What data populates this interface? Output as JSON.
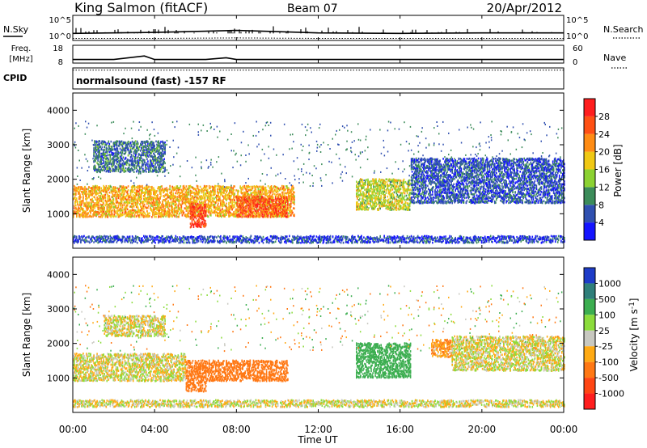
{
  "header": {
    "station": "King Salmon (fitACF)",
    "beam": "Beam 07",
    "date": "20/Apr/2012"
  },
  "noise_panel": {
    "left_label": "N.Sky",
    "right_label": "N.Search",
    "left_ticks": [
      "10^5",
      "10^0"
    ],
    "right_ticks": [
      "10^5",
      "10^0"
    ]
  },
  "freq_panel": {
    "left_label_line1": "Freq.",
    "left_label_line2": "[MHz]",
    "left_ticks": [
      "18",
      "8"
    ],
    "right_label": "Nave",
    "right_ticks": [
      "60",
      "0"
    ]
  },
  "cpid_panel": {
    "label": "CPID",
    "text": "normalsound (fast) -157 RF"
  },
  "x_axis": {
    "label": "Time UT",
    "ticks": [
      "00:00",
      "04:00",
      "08:00",
      "12:00",
      "16:00",
      "20:00",
      "00:00"
    ]
  },
  "y_axis": {
    "label": "Slant Range [km]",
    "ticks": [
      "1000",
      "2000",
      "3000",
      "4000"
    ]
  },
  "power_colorbar": {
    "label": "Power [dB]",
    "ticks": [
      "4",
      "8",
      "12",
      "16",
      "20",
      "24",
      "28"
    ],
    "colors": [
      "#1414ff",
      "#3050b0",
      "#3c8c5a",
      "#8cd232",
      "#f0c814",
      "#ff8c14",
      "#ff5014",
      "#ff1e1e"
    ]
  },
  "velocity_colorbar": {
    "label": "Velocity [m s",
    "label_exp": "-1",
    "label_close": "]",
    "ticks": [
      "1000",
      "500",
      "100",
      "25",
      "-25",
      "-100",
      "-500",
      "-1000"
    ],
    "colors": [
      "#1e3cc8",
      "#2f7f7a",
      "#3cae50",
      "#8cdc3c",
      "#c8c8c0",
      "#ffaa14",
      "#ff7814",
      "#ff4614",
      "#ff1e1e"
    ]
  },
  "chart_data": [
    {
      "type": "line",
      "title": "N.Sky / N.Search",
      "x": [
        "00:00",
        "04:00",
        "08:00",
        "12:00",
        "16:00",
        "20:00",
        "00:00"
      ],
      "series": [
        {
          "name": "N.Sky",
          "values": [
            1.4,
            1.6,
            2.0,
            1.5,
            1.4,
            1.5,
            1.5
          ]
        },
        {
          "name": "N.Search",
          "values": [
            0.4,
            0.4,
            0.5,
            0.4,
            0.4,
            0.4,
            0.4
          ]
        }
      ],
      "ylim": [
        0,
        5
      ]
    },
    {
      "type": "line",
      "title": "Freq. / Nave",
      "x": [
        "00:00",
        "02:00",
        "03:30",
        "04:00",
        "06:30",
        "07:30",
        "08:00",
        "12:00",
        "16:00",
        "20:00",
        "00:00"
      ],
      "series": [
        {
          "name": "Freq.",
          "values": [
            10,
            10,
            12,
            10,
            10,
            11,
            10,
            10,
            10,
            10,
            10
          ]
        },
        {
          "name": "Nave",
          "values": [
            4,
            4,
            4,
            4,
            4,
            4,
            4,
            4,
            4,
            4,
            4
          ]
        }
      ],
      "ylim": [
        8,
        18
      ]
    },
    {
      "type": "heatmap",
      "title": "Power",
      "xlabel": "Time UT",
      "ylabel": "Slant Range [km]",
      "xlim": [
        0,
        24
      ],
      "ylim": [
        0,
        4500
      ],
      "zlabel": "Power [dB]",
      "zlim": [
        0,
        32
      ],
      "regions": [
        {
          "t": [
            0.0,
            10.8
          ],
          "range": [
            900,
            1800
          ],
          "power": 20
        },
        {
          "t": [
            5.7,
            6.5
          ],
          "range": [
            600,
            1300
          ],
          "power": 28
        },
        {
          "t": [
            8.0,
            10.5
          ],
          "range": [
            900,
            1500
          ],
          "power": 27
        },
        {
          "t": [
            1.0,
            4.5
          ],
          "range": [
            2200,
            3100
          ],
          "power": 8
        },
        {
          "t": [
            13.8,
            16.5
          ],
          "range": [
            1100,
            2000
          ],
          "power": 16
        },
        {
          "t": [
            16.5,
            24.0
          ],
          "range": [
            1300,
            2600
          ],
          "power": 6
        },
        {
          "t": [
            0.0,
            24.0
          ],
          "range": [
            150,
            350
          ],
          "power": 5
        }
      ]
    },
    {
      "type": "heatmap",
      "title": "Velocity",
      "xlabel": "Time UT",
      "ylabel": "Slant Range [km]",
      "xlim": [
        0,
        24
      ],
      "ylim": [
        0,
        4500
      ],
      "zlabel": "Velocity [m s-1]",
      "zlim": [
        -1000,
        1000
      ],
      "regions": [
        {
          "t": [
            0.0,
            5.5
          ],
          "range": [
            900,
            1700
          ],
          "velocity": 0
        },
        {
          "t": [
            5.5,
            6.5
          ],
          "range": [
            600,
            1500
          ],
          "velocity": -300
        },
        {
          "t": [
            6.5,
            10.5
          ],
          "range": [
            900,
            1500
          ],
          "velocity": -250
        },
        {
          "t": [
            1.5,
            4.5
          ],
          "range": [
            2200,
            2800
          ],
          "velocity": 0
        },
        {
          "t": [
            13.8,
            16.5
          ],
          "range": [
            1000,
            2000
          ],
          "velocity": 250
        },
        {
          "t": [
            17.5,
            18.5
          ],
          "range": [
            1600,
            2100
          ],
          "velocity": -100
        },
        {
          "t": [
            18.5,
            24.0
          ],
          "range": [
            1200,
            2200
          ],
          "velocity": 0
        },
        {
          "t": [
            0.0,
            24.0
          ],
          "range": [
            150,
            350
          ],
          "velocity": 0
        }
      ]
    }
  ]
}
